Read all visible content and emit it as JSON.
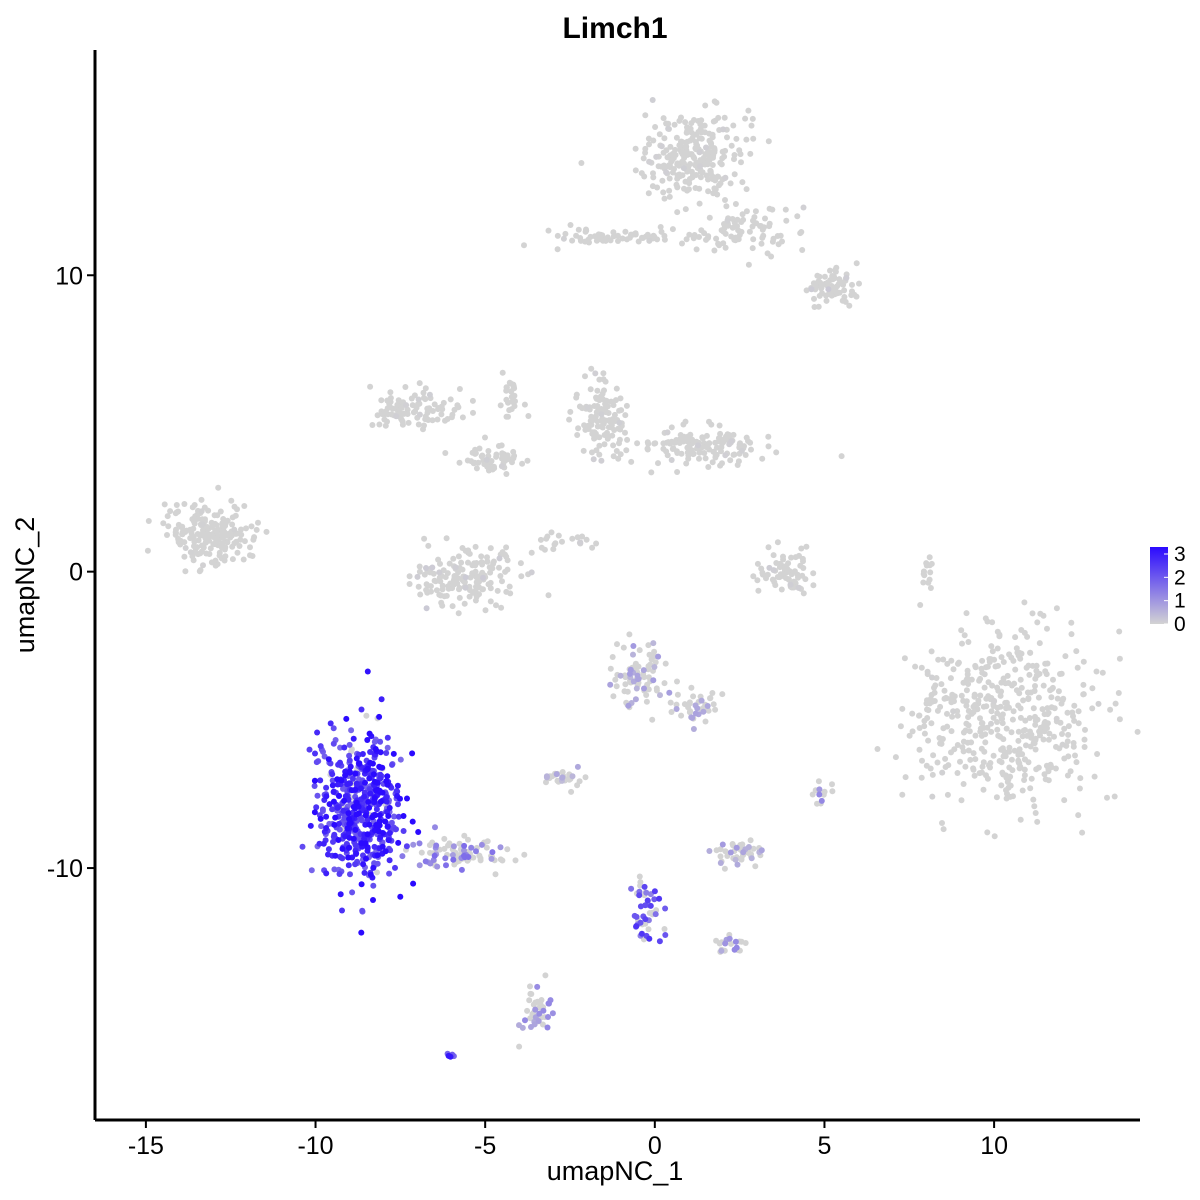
{
  "chart_data": {
    "type": "scatter",
    "title": "Limch1",
    "xlabel": "umapNC_1",
    "ylabel": "umapNC_2",
    "xlim": [
      -16.5,
      14.3
    ],
    "ylim": [
      -18.5,
      17.6
    ],
    "xticks": [
      -15,
      -10,
      -5,
      0,
      5,
      10
    ],
    "xtick_labels": [
      "-15",
      "-10",
      "-5",
      "0",
      "5",
      "10"
    ],
    "yticks": [
      -10,
      0,
      10
    ],
    "ytick_labels": [
      "-10",
      "0",
      "10"
    ],
    "grid": false,
    "legend": {
      "position": "right",
      "type": "colorbar",
      "range": [
        0,
        3.3
      ],
      "ticks": [
        0,
        1,
        2,
        3
      ],
      "tick_labels": [
        "0",
        "1",
        "2",
        "3"
      ],
      "low_color": "#d3d3d3",
      "high_color": "#2b0aff"
    },
    "clusters": [
      {
        "cx": 1.2,
        "cy": 14.0,
        "rx": 1.3,
        "ry": 1.4,
        "n": 260,
        "expr": 0.02
      },
      {
        "cx": -1.0,
        "cy": 11.3,
        "rx": 2.3,
        "ry": 0.3,
        "n": 70,
        "expr": 0.02
      },
      {
        "cx": 2.8,
        "cy": 11.5,
        "rx": 1.5,
        "ry": 0.8,
        "n": 70,
        "expr": 0.02
      },
      {
        "cx": 5.2,
        "cy": 9.6,
        "rx": 0.7,
        "ry": 0.6,
        "n": 70,
        "expr": 0.05
      },
      {
        "cx": -13.2,
        "cy": 1.3,
        "rx": 1.2,
        "ry": 1.0,
        "n": 190,
        "expr": 0.01
      },
      {
        "cx": -7.2,
        "cy": 5.5,
        "rx": 1.2,
        "ry": 0.6,
        "n": 100,
        "expr": 0.02
      },
      {
        "cx": -4.8,
        "cy": 3.8,
        "rx": 0.9,
        "ry": 0.4,
        "n": 60,
        "expr": 0.02
      },
      {
        "cx": -5.5,
        "cy": -0.2,
        "rx": 1.5,
        "ry": 0.8,
        "n": 170,
        "expr": 0.04
      },
      {
        "cx": -1.6,
        "cy": 5.0,
        "rx": 0.7,
        "ry": 1.2,
        "n": 120,
        "expr": 0.02
      },
      {
        "cx": 1.5,
        "cy": 4.2,
        "rx": 1.7,
        "ry": 0.6,
        "n": 140,
        "expr": 0.02
      },
      {
        "cx": 3.8,
        "cy": 0.0,
        "rx": 0.8,
        "ry": 0.8,
        "n": 70,
        "expr": 0.03
      },
      {
        "cx": 10.3,
        "cy": -5.0,
        "rx": 2.5,
        "ry": 2.7,
        "n": 480,
        "expr": 0.01
      },
      {
        "cx": -0.5,
        "cy": -3.5,
        "rx": 0.8,
        "ry": 0.9,
        "n": 80,
        "expr": 0.25
      },
      {
        "cx": 1.2,
        "cy": -4.5,
        "rx": 0.7,
        "ry": 0.6,
        "n": 40,
        "expr": 0.3
      },
      {
        "cx": -2.6,
        "cy": -7.0,
        "rx": 0.6,
        "ry": 0.3,
        "n": 30,
        "expr": 0.2
      },
      {
        "cx": -8.7,
        "cy": -7.9,
        "rx": 1.2,
        "ry": 2.3,
        "n": 550,
        "expr": 0.95
      },
      {
        "cx": -5.7,
        "cy": -9.5,
        "rx": 1.4,
        "ry": 0.5,
        "n": 90,
        "expr": 0.45
      },
      {
        "cx": 2.5,
        "cy": -9.5,
        "rx": 0.7,
        "ry": 0.4,
        "n": 50,
        "expr": 0.25
      },
      {
        "cx": -0.2,
        "cy": -11.5,
        "rx": 0.4,
        "ry": 1.0,
        "n": 50,
        "expr": 0.7
      },
      {
        "cx": 2.3,
        "cy": -12.6,
        "rx": 0.4,
        "ry": 0.3,
        "n": 20,
        "expr": 0.35
      },
      {
        "cx": -3.5,
        "cy": -14.8,
        "rx": 0.4,
        "ry": 0.8,
        "n": 45,
        "expr": 0.35
      },
      {
        "cx": -6.0,
        "cy": -16.3,
        "rx": 0.15,
        "ry": 0.1,
        "n": 6,
        "expr": 0.95
      },
      {
        "cx": 4.9,
        "cy": -7.5,
        "rx": 0.3,
        "ry": 0.3,
        "n": 12,
        "expr": 0.35
      },
      {
        "cx": 8.0,
        "cy": -0.2,
        "rx": 0.2,
        "ry": 0.8,
        "n": 15,
        "expr": 0.02
      },
      {
        "cx": -4.2,
        "cy": 6.0,
        "rx": 0.3,
        "ry": 1.0,
        "n": 25,
        "expr": 0.02
      },
      {
        "cx": -2.8,
        "cy": 1.0,
        "rx": 1.0,
        "ry": 0.3,
        "n": 20,
        "expr": 0.02
      }
    ]
  }
}
